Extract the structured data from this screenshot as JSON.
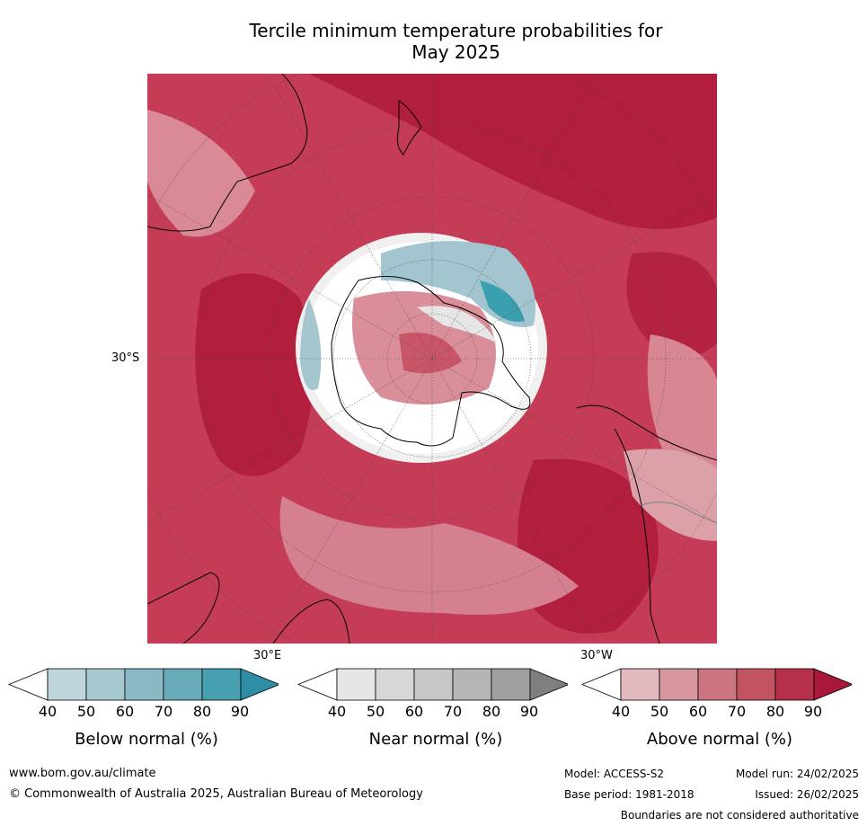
{
  "title_line1": "Tercile minimum temperature probabilities for",
  "title_line2": "May 2025",
  "map": {
    "projection": "south-polar-stereographic",
    "lat_label": "30°S",
    "lon_label_left": "30°E",
    "lon_label_right": "30°W"
  },
  "legends": [
    {
      "label": "Below normal (%)",
      "ticks": [
        "40",
        "50",
        "60",
        "70",
        "80",
        "90"
      ],
      "colors": [
        "#ffffff",
        "#bfd5dc",
        "#a8c8d0",
        "#8ab9c5",
        "#69abb9",
        "#46a0b0",
        "#2f8ea3"
      ]
    },
    {
      "label": "Near normal (%)",
      "ticks": [
        "40",
        "50",
        "60",
        "70",
        "80",
        "90"
      ],
      "colors": [
        "#ffffff",
        "#e6e6e6",
        "#d7d7d7",
        "#c7c7c7",
        "#b5b5b5",
        "#a0a0a0",
        "#7f7f7f"
      ]
    },
    {
      "label": "Above normal (%)",
      "ticks": [
        "40",
        "50",
        "60",
        "70",
        "80",
        "90"
      ],
      "colors": [
        "#ffffff",
        "#e2b9be",
        "#d8979e",
        "#cc7580",
        "#c25462",
        "#b7304a",
        "#a8183a"
      ]
    }
  ],
  "footer": {
    "website": "www.bom.gov.au/climate",
    "copyright": "© Commonwealth of Australia 2025, Australian Bureau of Meteorology",
    "model": "Model: ACCESS-S2",
    "model_run": "Model run: 24/02/2025",
    "base_period": "Base period: 1981-2018",
    "issued": "Issued: 26/02/2025",
    "disclaimer": "Boundaries are not considered authoritative"
  }
}
